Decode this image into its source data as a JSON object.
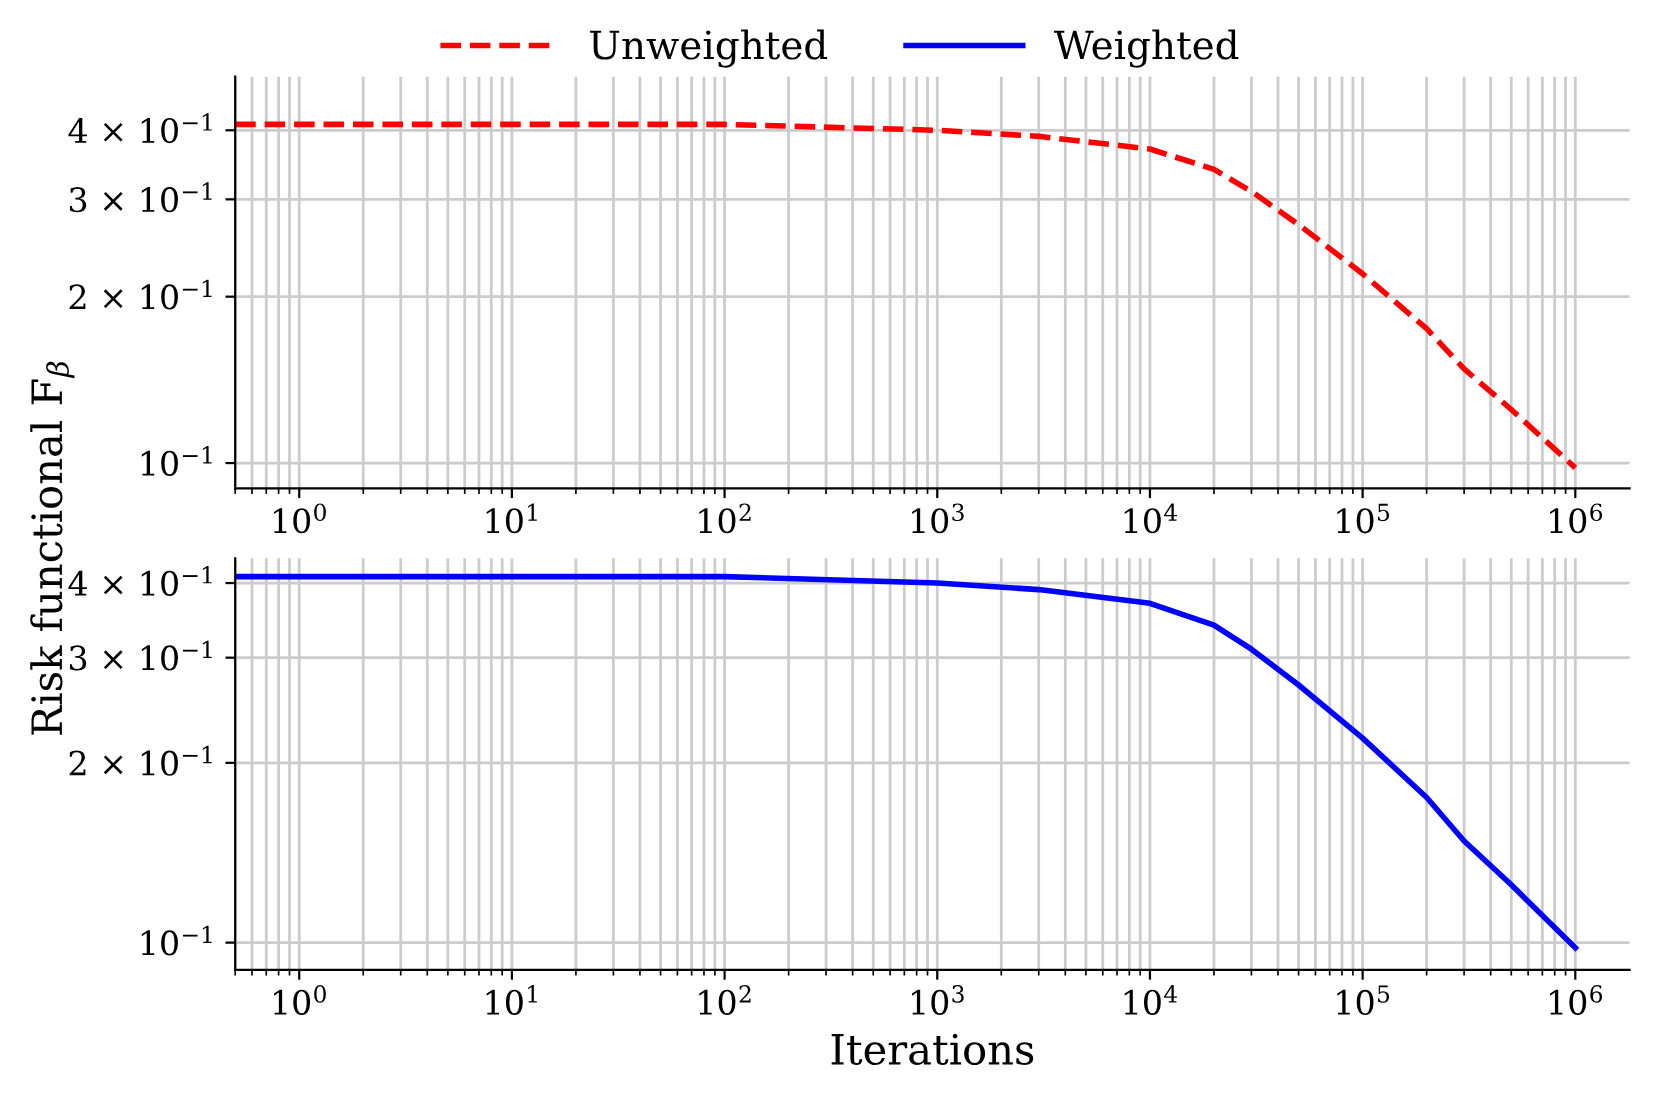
{
  "chart_data": [
    {
      "type": "line",
      "ylabel": "Risk functional F$_{β}$",
      "legend": "top",
      "log": "xy",
      "grid": true,
      "x": [
        0.5,
        1,
        10,
        100,
        1000,
        3000,
        10000,
        20000,
        30000,
        50000,
        100000,
        200000,
        300000,
        500000,
        1000000
      ],
      "series": [
        {
          "name": "Unweighted",
          "color": "#ff0000",
          "line_style": "dashed",
          "values": [
            0.41,
            0.41,
            0.41,
            0.41,
            0.4,
            0.39,
            0.37,
            0.34,
            0.31,
            0.27,
            0.22,
            0.175,
            0.148,
            0.125,
            0.098
          ]
        }
      ],
      "xlim": [
        0.5,
        1800000
      ],
      "ylim": [
        0.09,
        0.5
      ],
      "xticks": [
        {
          "value": 1,
          "label": "10$^{0}$"
        },
        {
          "value": 10,
          "label": "10$^{1}$"
        },
        {
          "value": 100,
          "label": "10$^{2}$"
        },
        {
          "value": 1000,
          "label": "10$^{3}$"
        },
        {
          "value": 10000,
          "label": "10$^{4}$"
        },
        {
          "value": 100000,
          "label": "10$^{5}$"
        },
        {
          "value": 1000000,
          "label": "10$^{6}$"
        }
      ],
      "yticks": [
        {
          "value": 0.1,
          "label": "10$^{−1}$"
        },
        {
          "value": 0.2,
          "label": "2 × 10$^{−1}$"
        },
        {
          "value": 0.3,
          "label": "3 × 10$^{−1}$"
        },
        {
          "value": 0.4,
          "label": "4 × 10$^{−1}$"
        }
      ]
    },
    {
      "type": "line",
      "xlabel": "Iterations",
      "log": "xy",
      "grid": true,
      "x": [
        0.5,
        1,
        10,
        100,
        1000,
        3000,
        10000,
        20000,
        30000,
        50000,
        100000,
        200000,
        300000,
        500000,
        1000000
      ],
      "series": [
        {
          "name": "Weighted",
          "color": "#0000ff",
          "line_style": "solid",
          "values": [
            0.41,
            0.41,
            0.41,
            0.41,
            0.4,
            0.39,
            0.37,
            0.34,
            0.31,
            0.27,
            0.22,
            0.175,
            0.148,
            0.125,
            0.098
          ]
        }
      ],
      "xlim": [
        0.5,
        1800000
      ],
      "ylim": [
        0.09,
        0.44
      ],
      "xticks": [
        {
          "value": 1,
          "label": "10$^{0}$"
        },
        {
          "value": 10,
          "label": "10$^{1}$"
        },
        {
          "value": 100,
          "label": "10$^{2}$"
        },
        {
          "value": 1000,
          "label": "10$^{3}$"
        },
        {
          "value": 10000,
          "label": "10$^{4}$"
        },
        {
          "value": 100000,
          "label": "10$^{5}$"
        },
        {
          "value": 1000000,
          "label": "10$^{6}$"
        }
      ],
      "yticks": [
        {
          "value": 0.1,
          "label": "10$^{−1}$"
        },
        {
          "value": 0.2,
          "label": "2 × 10$^{−1}$"
        },
        {
          "value": 0.3,
          "label": "3 × 10$^{−1}$"
        },
        {
          "value": 0.4,
          "label": "4 × 10$^{−1}$"
        }
      ]
    }
  ]
}
